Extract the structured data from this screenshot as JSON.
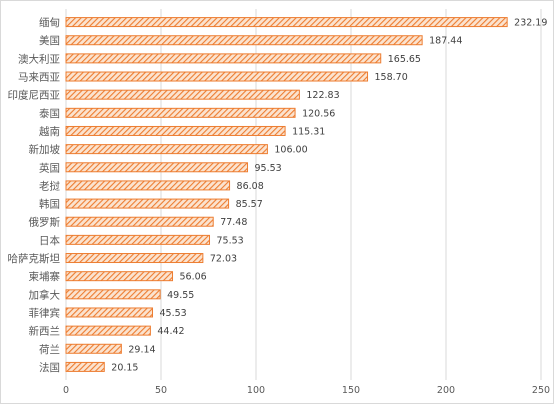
{
  "chart_data": {
    "type": "bar",
    "orientation": "horizontal",
    "categories": [
      "缅甸",
      "美国",
      "澳大利亚",
      "马来西亚",
      "印度尼西亚",
      "泰国",
      "越南",
      "新加坡",
      "英国",
      "老挝",
      "韩国",
      "俄罗斯",
      "日本",
      "哈萨克斯坦",
      "柬埔寨",
      "加拿大",
      "菲律宾",
      "新西兰",
      "荷兰",
      "法国"
    ],
    "values": [
      232.19,
      187.44,
      165.65,
      158.7,
      122.83,
      120.56,
      115.31,
      106.0,
      95.53,
      86.08,
      85.57,
      77.48,
      75.53,
      72.03,
      56.06,
      49.55,
      45.53,
      44.42,
      29.14,
      20.15
    ],
    "value_labels": [
      "232.19",
      "187.44",
      "165.65",
      "158.70",
      "122.83",
      "120.56",
      "115.31",
      "106.00",
      "95.53",
      "86.08",
      "85.57",
      "77.48",
      "75.53",
      "72.03",
      "56.06",
      "49.55",
      "45.53",
      "44.42",
      "29.14",
      "20.15"
    ],
    "xlim": [
      0,
      250
    ],
    "x_ticks": [
      "0",
      "50",
      "100",
      "150",
      "200",
      "250"
    ],
    "x_tick_values": [
      0,
      50,
      100,
      150,
      200,
      250
    ],
    "grid": true,
    "bar_color": "#ed7d31",
    "bar_fill": "diagonal-hatch",
    "title": "",
    "xlabel": "",
    "ylabel": ""
  }
}
